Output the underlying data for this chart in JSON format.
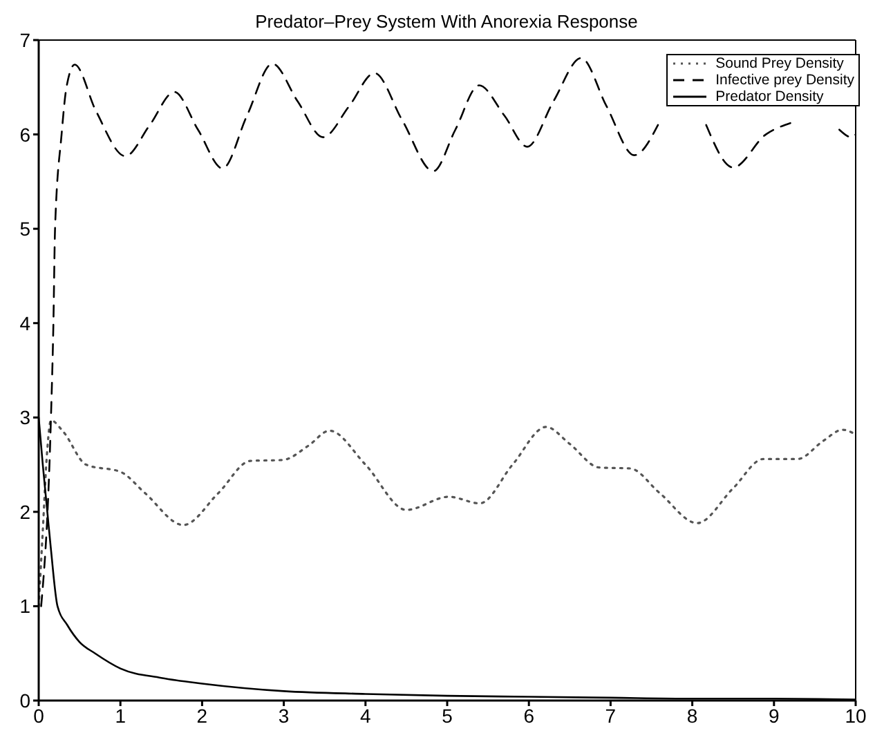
{
  "chart_data": {
    "type": "line",
    "title": "Predator–Prey System With Anorexia Response",
    "xlim": [
      0,
      10
    ],
    "ylim": [
      0,
      7
    ],
    "xticks": [
      0,
      1,
      2,
      3,
      4,
      5,
      6,
      7,
      8,
      9,
      10
    ],
    "yticks": [
      0,
      1,
      2,
      3,
      4,
      5,
      6,
      7
    ],
    "legend": "top right",
    "grid": false,
    "series": [
      {
        "name": "Sound Prey Density",
        "color": "#555555",
        "line_style": "dotted",
        "x": [
          0,
          0.05,
          0.1,
          0.15,
          0.3,
          0.58,
          1.01,
          1.3,
          1.77,
          2.2,
          2.59,
          2.99,
          3.3,
          3.56,
          4.0,
          4.5,
          5.02,
          5.4,
          5.8,
          6.21,
          6.5,
          6.86,
          7.24,
          7.6,
          8.06,
          8.5,
          8.87,
          9.29,
          9.6,
          9.84,
          10
        ],
        "values": [
          1.0,
          1.8,
          2.6,
          2.97,
          2.85,
          2.5,
          2.42,
          2.2,
          1.86,
          2.2,
          2.54,
          2.55,
          2.7,
          2.86,
          2.5,
          2.02,
          2.16,
          2.09,
          2.5,
          2.9,
          2.72,
          2.47,
          2.46,
          2.2,
          1.88,
          2.25,
          2.56,
          2.56,
          2.75,
          2.87,
          2.82
        ]
      },
      {
        "name": "Infective prey Density",
        "color": "#000000",
        "line_style": "dashed",
        "x": [
          0.03,
          0.15,
          0.18,
          0.2,
          0.28,
          0.34,
          0.44,
          0.7,
          1.06,
          1.36,
          1.66,
          1.95,
          2.25,
          2.55,
          2.86,
          3.17,
          3.48,
          3.8,
          4.11,
          4.45,
          4.83,
          5.1,
          5.39,
          5.7,
          5.98,
          6.3,
          6.64,
          6.95,
          7.29,
          7.58,
          7.9,
          8.17,
          8.5,
          8.9,
          9.2,
          9.6,
          9.8,
          9.95,
          10
        ],
        "values": [
          1.0,
          3.0,
          4.0,
          5.0,
          6.0,
          6.5,
          6.74,
          6.25,
          5.77,
          6.1,
          6.45,
          6.05,
          5.64,
          6.2,
          6.75,
          6.35,
          5.97,
          6.3,
          6.65,
          6.15,
          5.61,
          6.05,
          6.52,
          6.2,
          5.87,
          6.35,
          6.81,
          6.3,
          5.78,
          6.1,
          null,
          6.1,
          5.65,
          6.0,
          6.12,
          null,
          6.05,
          5.97,
          6.0
        ]
      },
      {
        "name": "Predator Density",
        "color": "#000000",
        "line_style": "solid",
        "x": [
          0,
          0.05,
          0.1,
          0.15,
          0.23,
          0.35,
          0.5,
          0.69,
          1,
          1.5,
          2,
          3,
          4,
          5,
          6,
          7,
          8,
          9,
          10
        ],
        "values": [
          3.0,
          2.5,
          2.05,
          1.6,
          1.0,
          0.8,
          0.62,
          0.5,
          0.34,
          0.24,
          0.18,
          0.1,
          0.07,
          0.05,
          0.04,
          0.03,
          0.02,
          0.02,
          0.01
        ]
      }
    ]
  }
}
